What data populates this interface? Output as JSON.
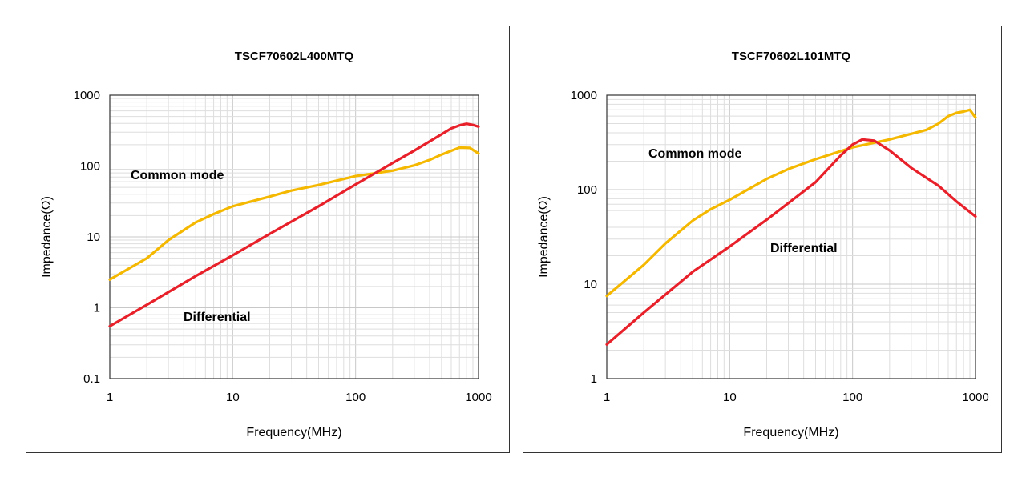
{
  "chart_data": [
    {
      "type": "line",
      "title": "TSCF70602L400MTQ",
      "xlabel": "Frequency(MHz)",
      "ylabel": "Impedance(Ω)",
      "xscale": "log",
      "yscale": "log",
      "xlim": [
        1,
        1000
      ],
      "ylim": [
        0.1,
        1000
      ],
      "xticks": [
        "1",
        "10",
        "100",
        "1000"
      ],
      "yticks": [
        "0.1",
        "1",
        "10",
        "100",
        "1000"
      ],
      "grid": true,
      "annotations": [
        "Common mode",
        "Differential"
      ],
      "series": [
        {
          "name": "Common mode",
          "color": "#F5B800",
          "x": [
            1,
            2,
            3,
            5,
            7,
            10,
            20,
            30,
            50,
            100,
            200,
            300,
            400,
            500,
            700,
            850,
            1000
          ],
          "y": [
            2.5,
            5,
            9,
            16,
            21,
            27,
            37,
            45,
            54,
            72,
            86,
            102,
            122,
            145,
            182,
            180,
            150
          ]
        },
        {
          "name": "Differential",
          "color": "#E8202A",
          "x": [
            1,
            2,
            5,
            10,
            20,
            50,
            100,
            200,
            300,
            500,
            600,
            700,
            800,
            900,
            1000
          ],
          "y": [
            0.55,
            1.1,
            2.8,
            5.5,
            11,
            27,
            55,
            110,
            165,
            280,
            340,
            375,
            395,
            380,
            360
          ]
        }
      ]
    },
    {
      "type": "line",
      "title": "TSCF70602L101MTQ",
      "xlabel": "Frequency(MHz)",
      "ylabel": "Impedance(Ω)",
      "xscale": "log",
      "yscale": "log",
      "xlim": [
        1,
        1000
      ],
      "ylim": [
        1,
        1000
      ],
      "xticks": [
        "1",
        "10",
        "100",
        "1000"
      ],
      "yticks": [
        "1",
        "10",
        "100",
        "1000"
      ],
      "grid": true,
      "annotations": [
        "Common mode",
        "Differential"
      ],
      "series": [
        {
          "name": "Common mode",
          "color": "#F5B800",
          "x": [
            1,
            2,
            3,
            5,
            7,
            10,
            20,
            30,
            50,
            100,
            200,
            300,
            400,
            500,
            600,
            700,
            800,
            900,
            1000
          ],
          "y": [
            7.5,
            16,
            27,
            47,
            62,
            78,
            130,
            165,
            210,
            280,
            340,
            390,
            430,
            500,
            600,
            650,
            670,
            700,
            580
          ]
        },
        {
          "name": "Differential",
          "color": "#E8202A",
          "x": [
            1,
            2,
            5,
            10,
            20,
            50,
            80,
            100,
            120,
            150,
            200,
            300,
            500,
            700,
            1000
          ],
          "y": [
            2.3,
            5,
            13.5,
            25,
            48,
            120,
            230,
            300,
            340,
            330,
            260,
            170,
            110,
            75,
            52
          ]
        }
      ]
    }
  ]
}
